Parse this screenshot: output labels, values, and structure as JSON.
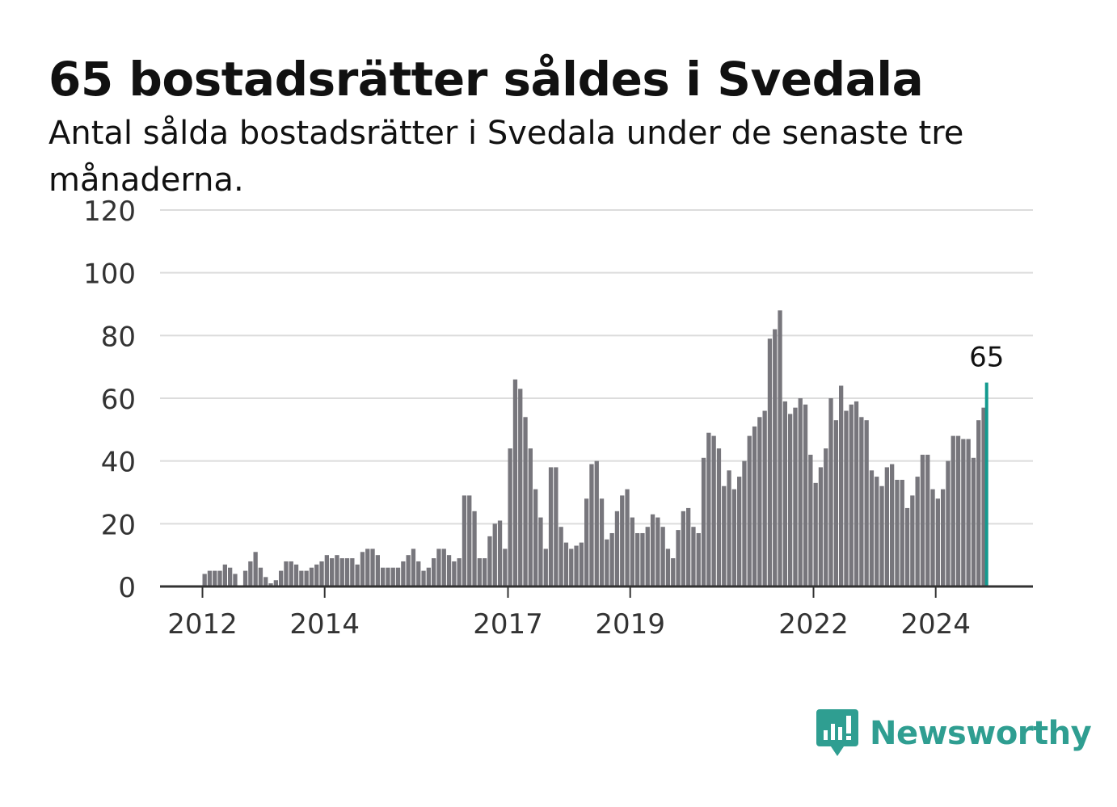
{
  "title": "65 bostadsrätter såldes i Svedala",
  "subtitle": "Antal sålda bostadsrätter i Svedala under de senaste tre månaderna.",
  "brand": {
    "name": "Newsworthy",
    "icon": "newsworthy-logo-icon",
    "color": "#2f9e91"
  },
  "chart_data": {
    "type": "bar",
    "title": "65 bostadsrätter såldes i Svedala",
    "ylim": [
      0,
      120
    ],
    "yticks": [
      0,
      20,
      40,
      60,
      80,
      100,
      120
    ],
    "xtick_labels": [
      "2012",
      "2014",
      "2017",
      "2019",
      "2022",
      "2024"
    ],
    "grid": true,
    "bar_color": "#77767c",
    "highlight_color": "#139a8f",
    "start": "2012-01",
    "frequency": "monthly",
    "values": [
      4,
      5,
      5,
      5,
      7,
      6,
      4,
      0,
      5,
      8,
      11,
      6,
      3,
      1,
      2,
      5,
      8,
      8,
      7,
      5,
      5,
      6,
      7,
      8,
      10,
      9,
      10,
      9,
      9,
      9,
      7,
      11,
      12,
      12,
      10,
      6,
      6,
      6,
      6,
      8,
      10,
      12,
      8,
      5,
      6,
      9,
      12,
      12,
      10,
      8,
      9,
      29,
      29,
      24,
      9,
      9,
      16,
      20,
      21,
      12,
      44,
      66,
      63,
      54,
      44,
      31,
      22,
      12,
      38,
      38,
      19,
      14,
      12,
      13,
      14,
      28,
      39,
      40,
      28,
      15,
      17,
      24,
      29,
      31,
      22,
      17,
      17,
      19,
      23,
      22,
      19,
      12,
      9,
      18,
      24,
      25,
      19,
      17,
      41,
      49,
      48,
      44,
      32,
      37,
      31,
      35,
      40,
      48,
      51,
      54,
      56,
      79,
      82,
      88,
      59,
      55,
      57,
      60,
      58,
      42,
      33,
      38,
      44,
      60,
      53,
      64,
      56,
      58,
      59,
      54,
      53,
      37,
      35,
      32,
      38,
      39,
      34,
      34,
      25,
      29,
      35,
      42,
      42,
      31,
      28,
      31,
      40,
      48,
      48,
      47,
      47,
      41,
      53,
      57,
      65
    ],
    "highlight": {
      "label": "65",
      "value": 65
    }
  }
}
